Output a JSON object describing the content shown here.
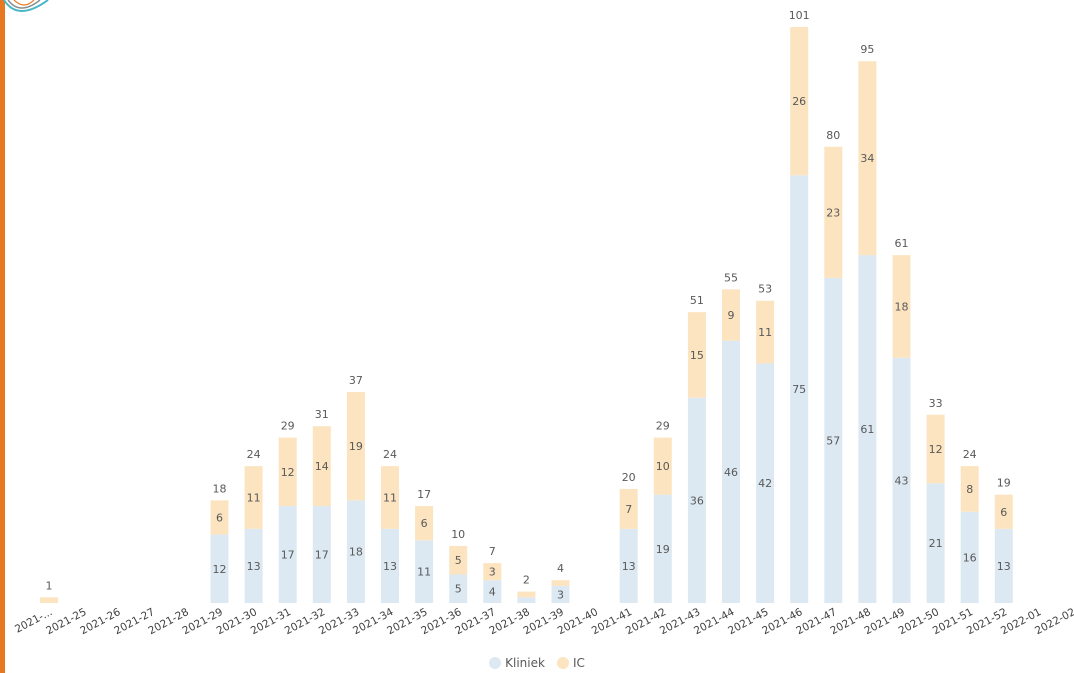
{
  "chart_data": {
    "type": "bar",
    "stacked": true,
    "categories": [
      "2021-...",
      "2021-25",
      "2021-26",
      "2021-27",
      "2021-28",
      "2021-29",
      "2021-30",
      "2021-31",
      "2021-32",
      "2021-33",
      "2021-34",
      "2021-35",
      "2021-36",
      "2021-37",
      "2021-38",
      "2021-39",
      "2021-40",
      "2021-41",
      "2021-42",
      "2021-43",
      "2021-44",
      "2021-45",
      "2021-46",
      "2021-47",
      "2021-48",
      "2021-49",
      "2021-50",
      "2021-51",
      "2021-52",
      "2022-01",
      "2022-02"
    ],
    "series": [
      {
        "name": "Kliniek",
        "color": "#dce9f2",
        "values": [
          0,
          null,
          null,
          null,
          null,
          12,
          13,
          17,
          17,
          18,
          13,
          11,
          5,
          4,
          1,
          3,
          null,
          13,
          19,
          36,
          46,
          42,
          75,
          57,
          61,
          43,
          21,
          16,
          13,
          null,
          null
        ]
      },
      {
        "name": "IC",
        "color": "#fce4c0",
        "values": [
          1,
          null,
          null,
          null,
          null,
          6,
          11,
          12,
          14,
          19,
          11,
          6,
          5,
          3,
          1,
          1,
          null,
          7,
          10,
          15,
          9,
          11,
          26,
          23,
          34,
          18,
          12,
          8,
          6,
          null,
          null
        ]
      }
    ],
    "segment_labels": {
      "Kliniek": [
        "",
        "",
        "",
        "",
        "",
        "12",
        "13",
        "17",
        "17",
        "18",
        "13",
        "11",
        "5",
        "4",
        "",
        "3",
        "",
        "13",
        "19",
        "36",
        "46",
        "42",
        "75",
        "57",
        "61",
        "43",
        "21",
        "16",
        "13",
        "",
        ""
      ],
      "IC": [
        "",
        "",
        "",
        "",
        "",
        "6",
        "11",
        "12",
        "14",
        "19",
        "11",
        "6",
        "5",
        "3",
        "",
        "",
        "",
        "7",
        "10",
        "15",
        "9",
        "11",
        "26",
        "23",
        "34",
        "18",
        "12",
        "8",
        "6",
        "",
        ""
      ]
    },
    "totals": [
      "1",
      "",
      "",
      "",
      "",
      "18",
      "24",
      "29",
      "31",
      "37",
      "24",
      "17",
      "10",
      "7",
      "2",
      "4",
      "",
      "20",
      "29",
      "51",
      "55",
      "53",
      "101",
      "80",
      "95",
      "61",
      "33",
      "24",
      "19",
      "",
      ""
    ],
    "ylim": [
      0,
      101
    ],
    "grid": false,
    "legend_position": "bottom"
  }
}
